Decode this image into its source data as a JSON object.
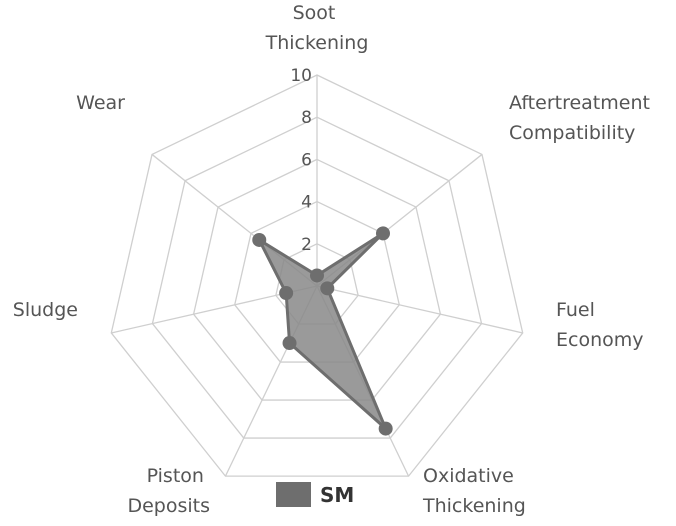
{
  "chart_data": {
    "type": "radar",
    "axes": [
      [
        "Soot",
        "Thickening"
      ],
      [
        "Aftertreatment",
        "Compatibility"
      ],
      [
        "Fuel",
        "Economy"
      ],
      [
        "Oxidative",
        "Thickening"
      ],
      [
        "Piston",
        "Deposits"
      ],
      [
        "Sludge"
      ],
      [
        "Wear"
      ]
    ],
    "rlim": [
      0,
      10
    ],
    "ticks": [
      "2",
      "4",
      "6",
      "8",
      "10"
    ],
    "grid": true,
    "legend_position": "bottom",
    "series": [
      {
        "name": "SM",
        "values": [
          0.5,
          4.0,
          0.5,
          7.5,
          3.0,
          1.5,
          3.5
        ],
        "color": "#6e6e6e",
        "fill": "#888888"
      }
    ]
  }
}
